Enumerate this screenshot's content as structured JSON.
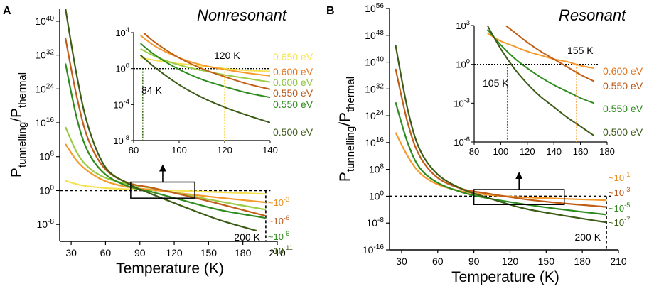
{
  "figure": {
    "panels": [
      {
        "letter": "A",
        "title": "Nonresonant"
      },
      {
        "letter": "B",
        "title": "Resonant"
      }
    ]
  },
  "chart_data": [
    {
      "id": "A",
      "type": "line",
      "title": "Nonresonant",
      "xlabel": "Temperature (K)",
      "ylabel": "P_tunnelling/P_thermal",
      "xlim": [
        20,
        210
      ],
      "ylim_exp": [
        -12,
        43
      ],
      "log_y": true,
      "x_ticks": [
        30,
        60,
        90,
        120,
        150,
        180,
        210
      ],
      "y_tick_exps": [
        -8,
        0,
        8,
        16,
        24,
        32,
        40
      ],
      "y_tick_labels": [
        "10-8",
        "100",
        "108",
        "1016",
        "1024",
        "1032",
        "1040"
      ],
      "series": [
        {
          "name": "0.650 eV",
          "color": "#f6e251",
          "x": [
            25,
            40,
            60,
            80,
            100,
            120,
            140,
            170,
            200
          ],
          "y_exp": [
            2.3,
            1.2,
            0.6,
            0.3,
            0.1,
            0.0,
            -0.2,
            -0.5,
            -0.8
          ]
        },
        {
          "name": "0.600 eV",
          "color": "#f59a2b",
          "x": [
            25,
            35,
            45,
            60,
            80,
            100,
            130,
            160,
            200
          ],
          "y_exp": [
            11,
            7,
            4.5,
            2.2,
            0.8,
            0.2,
            -0.8,
            -1.7,
            -2.8
          ]
        },
        {
          "name": "0.600 eV",
          "color": "#9ccb45",
          "x": [
            25,
            35,
            45,
            60,
            80,
            100,
            130,
            160,
            200
          ],
          "y_exp": [
            15,
            9,
            5.5,
            3,
            1.5,
            0.6,
            -1,
            -2.6,
            -4.5
          ]
        },
        {
          "name": "0.550 eV",
          "color": "#c05e17",
          "x": [
            25,
            35,
            45,
            60,
            80,
            100,
            130,
            160,
            200
          ],
          "y_exp": [
            36,
            22,
            12,
            5,
            1.8,
            0.7,
            -1.2,
            -3.2,
            -6
          ]
        },
        {
          "name": "0.550 eV",
          "color": "#2e8b1e",
          "x": [
            25,
            35,
            45,
            60,
            80,
            100,
            130,
            160,
            200
          ],
          "y_exp": [
            30,
            17,
            9,
            3.8,
            1,
            -0.3,
            -2.5,
            -4.6,
            -6.5
          ]
        },
        {
          "name": "0.500 eV",
          "color": "#3c5c17",
          "x": [
            25,
            35,
            45,
            60,
            80,
            100,
            130,
            160,
            192
          ],
          "y_exp": [
            43,
            27,
            15,
            5.5,
            1.6,
            -0.8,
            -4,
            -7,
            -9.5
          ]
        }
      ],
      "end_labels": [
        "~10-3",
        "~10-6",
        "~10-6",
        "~10-11"
      ],
      "annotation": "200 K",
      "inset": {
        "xlim": [
          80,
          140
        ],
        "ylim_exp": [
          -8,
          4
        ],
        "x_ticks": [
          80,
          100,
          120,
          140
        ],
        "y_tick_exps": [
          -8,
          -4,
          0,
          4
        ],
        "y_tick_labels": [
          "10-8",
          "10-4",
          "100",
          "104"
        ],
        "series": [
          {
            "name": "0.650 eV",
            "color": "#f6e251",
            "x": [
              83,
              90,
              100,
              110,
              120,
              130,
              140
            ],
            "y_exp": [
              1.2,
              0.9,
              0.55,
              0.3,
              0.0,
              -0.2,
              -0.3
            ]
          },
          {
            "name": "0.600 eV",
            "color": "#f59a2b",
            "x": [
              83,
              90,
              100,
              110,
              120,
              130,
              140
            ],
            "y_exp": [
              3.7,
              2.4,
              1.2,
              0.4,
              -0.1,
              -0.5,
              -0.8
            ]
          },
          {
            "name": "0.600 eV",
            "color": "#9ccb45",
            "x": [
              83,
              90,
              100,
              110,
              120,
              130,
              140
            ],
            "y_exp": [
              2.2,
              1.3,
              0.4,
              -0.2,
              -0.7,
              -1.1,
              -1.5
            ]
          },
          {
            "name": "0.550 eV",
            "color": "#c05e17",
            "x": [
              83,
              90,
              100,
              110,
              120,
              130,
              140
            ],
            "y_exp": [
              4.3,
              2.8,
              1.2,
              0.0,
              -0.9,
              -1.7,
              -2.3
            ]
          },
          {
            "name": "0.550 eV",
            "color": "#2e8b1e",
            "x": [
              83,
              90,
              100,
              110,
              120,
              130,
              140
            ],
            "y_exp": [
              2.8,
              1.4,
              -0.1,
              -1.2,
              -2.0,
              -2.7,
              -3.2
            ]
          },
          {
            "name": "0.500 eV",
            "color": "#3c5c17",
            "x": [
              83,
              90,
              100,
              110,
              120,
              130,
              140
            ],
            "y_exp": [
              1.5,
              0.0,
              -1.8,
              -3.2,
              -4.3,
              -5.2,
              -6.0
            ]
          }
        ],
        "legend": [
          {
            "text": "0.650 eV",
            "color": "#f6e251"
          },
          {
            "text": "0.600 eV",
            "color": "#e2731c"
          },
          {
            "text": "0.600 eV",
            "color": "#8cc63f"
          },
          {
            "text": "0.550 eV",
            "color": "#b8581a"
          },
          {
            "text": "0.550 eV",
            "color": "#2e8b1e"
          },
          {
            "text": "0.500 eV",
            "color": "#3c5c17"
          }
        ],
        "temp_markers": [
          {
            "text": "120 K",
            "x": 120,
            "color": "#f6cf3a"
          },
          {
            "text": "84 K",
            "x": 84,
            "color": "#3c6e1a"
          }
        ]
      }
    },
    {
      "id": "B",
      "type": "line",
      "title": "Resonant",
      "xlabel": "Temperature (K)",
      "ylabel": "P_tunnelling/P_thermal",
      "xlim": [
        20,
        210
      ],
      "ylim_exp": [
        -16,
        56
      ],
      "log_y": true,
      "x_ticks": [
        30,
        60,
        90,
        120,
        150,
        180,
        210
      ],
      "y_tick_exps": [
        -16,
        -8,
        0,
        8,
        16,
        24,
        32,
        40,
        48,
        56
      ],
      "y_tick_labels": [
        "10-16",
        "10-8",
        "100",
        "108",
        "1016",
        "1024",
        "1032",
        "1040",
        "1048",
        "1056"
      ],
      "series": [
        {
          "name": "0.600 eV",
          "color": "#f59a2b",
          "x": [
            25,
            35,
            45,
            60,
            80,
            100,
            130,
            160,
            200
          ],
          "y_exp": [
            19,
            12,
            7,
            3.5,
            1.5,
            0.5,
            -0.3,
            -0.7,
            -1.2
          ]
        },
        {
          "name": "0.550 eV",
          "color": "#c05e17",
          "x": [
            25,
            35,
            45,
            60,
            80,
            100,
            130,
            160,
            200
          ],
          "y_exp": [
            38,
            22,
            12,
            5.5,
            2.2,
            0.9,
            -0.8,
            -2,
            -3.2
          ]
        },
        {
          "name": "0.550 eV",
          "color": "#2e8b1e",
          "x": [
            25,
            35,
            45,
            60,
            80,
            100,
            130,
            160,
            200
          ],
          "y_exp": [
            28,
            16,
            8.5,
            4,
            1.2,
            -0.5,
            -2.3,
            -3.8,
            -5.5
          ]
        },
        {
          "name": "0.500 eV",
          "color": "#3c5c17",
          "x": [
            25,
            35,
            45,
            60,
            80,
            100,
            130,
            160,
            200
          ],
          "y_exp": [
            45,
            26,
            14,
            6.5,
            2.2,
            -0.3,
            -3.5,
            -5.5,
            -7.8
          ]
        }
      ],
      "end_labels": [
        "~10-1",
        "~10-3",
        "~10-5",
        "~10-7"
      ],
      "annotation": "200 K",
      "inset": {
        "xlim": [
          80,
          180
        ],
        "ylim_exp": [
          -6,
          3
        ],
        "x_ticks": [
          80,
          100,
          120,
          140,
          160,
          180
        ],
        "y_tick_exps": [
          -6,
          -3,
          0,
          3
        ],
        "y_tick_labels": [
          "10-6",
          "10-3",
          "100",
          "103"
        ],
        "series": [
          {
            "name": "0.600 eV",
            "color": "#f59a2b",
            "x": [
              90,
              100,
              110,
              120,
              130,
              140,
              150,
              160,
              170
            ],
            "y_exp": [
              2.4,
              1.8,
              1.4,
              1.0,
              0.7,
              0.4,
              0.2,
              -0.1,
              -0.3
            ]
          },
          {
            "name": "0.550 eV",
            "color": "#c05e17",
            "x": [
              100,
              110,
              120,
              130,
              140,
              150,
              160,
              170
            ],
            "y_exp": [
              3.3,
              2.5,
              1.7,
              1.0,
              0.4,
              -0.2,
              -0.8,
              -1.3
            ]
          },
          {
            "name": "0.550 eV",
            "color": "#2e8b1e",
            "x": [
              90,
              100,
              110,
              120,
              130,
              140,
              150,
              160,
              170
            ],
            "y_exp": [
              2.7,
              1.5,
              0.5,
              -0.3,
              -1.0,
              -1.6,
              -2.1,
              -2.6,
              -3.0
            ]
          },
          {
            "name": "0.500 eV",
            "color": "#3c5c17",
            "x": [
              90,
              100,
              110,
              120,
              130,
              140,
              150,
              160,
              170
            ],
            "y_exp": [
              3.0,
              1.2,
              -0.3,
              -1.5,
              -2.5,
              -3.3,
              -4.1,
              -4.8,
              -5.5
            ]
          }
        ],
        "legend": [
          {
            "text": "0.600 eV",
            "color": "#e2731c"
          },
          {
            "text": "0.550 eV",
            "color": "#b8581a"
          },
          {
            "text": "0.550 eV",
            "color": "#2e8b1e"
          },
          {
            "text": "0.500 eV",
            "color": "#3c5c17"
          }
        ],
        "temp_markers": [
          {
            "text": "155 K",
            "x": 157,
            "color": "#f59a2b"
          },
          {
            "text": "105 K",
            "x": 105,
            "color": "#3c6e1a"
          }
        ]
      }
    }
  ]
}
